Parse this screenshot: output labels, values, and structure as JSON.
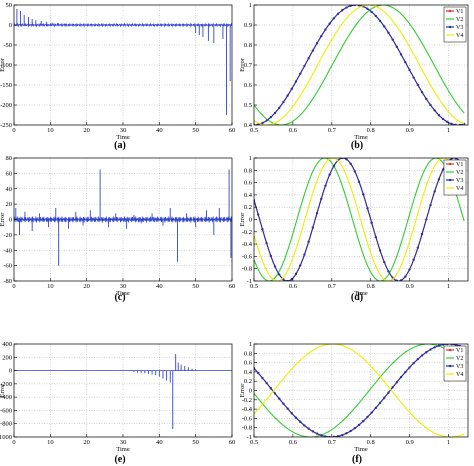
{
  "chart_data": [
    {
      "id": "a",
      "type": "line",
      "panel_label": "(a)",
      "xlabel": "Time",
      "ylabel": "Error",
      "xlim": [
        0,
        60
      ],
      "ylim": [
        -250,
        50
      ],
      "xticks": [
        0,
        10,
        20,
        30,
        40,
        50,
        60
      ],
      "yticks": [
        50,
        0,
        -50,
        -100,
        -150,
        -200,
        -250
      ],
      "grid": true,
      "series": [
        {
          "color": "#3344cc",
          "kind": "spikes",
          "baseline": 0,
          "spikes": [
            [
              0.8,
              40
            ],
            [
              1.8,
              35
            ],
            [
              2.8,
              25
            ],
            [
              4,
              20
            ],
            [
              5,
              15
            ],
            [
              6,
              12
            ],
            [
              7.5,
              10
            ],
            [
              9,
              8
            ],
            [
              10.5,
              6
            ],
            [
              12,
              5
            ],
            [
              14,
              4
            ],
            [
              50,
              -20
            ],
            [
              51,
              -25
            ],
            [
              52,
              -30
            ],
            [
              53.5,
              -40
            ],
            [
              55,
              -45
            ],
            [
              57.5,
              -35
            ],
            [
              58.5,
              -225
            ],
            [
              59.5,
              -140
            ]
          ],
          "noise": 3
        }
      ]
    },
    {
      "id": "b",
      "type": "line",
      "panel_label": "(b)",
      "xlabel": "Time",
      "ylabel": "Error",
      "xlim": [
        0.5,
        1.05
      ],
      "ylim": [
        0.4,
        1.0
      ],
      "xticks": [
        0.5,
        0.6,
        0.7,
        0.8,
        0.9,
        1
      ],
      "yticks": [
        1,
        0.9,
        0.8,
        0.7,
        0.6,
        0.5,
        0.4
      ],
      "grid": true,
      "legend_position": "top-right",
      "series": [
        {
          "name": "V1",
          "color": "#e8302a",
          "marker": "dot",
          "x_start": 0.5,
          "x_end": 1.04,
          "freq": 6.0,
          "phase": 3.14,
          "amp": 0.3,
          "mid": 0.7
        },
        {
          "name": "V2",
          "color": "#33cc33",
          "marker": "none",
          "x_start": 0.5,
          "x_end": 1.04,
          "freq": 6.0,
          "phase": 2.3,
          "amp": 0.3,
          "mid": 0.7
        },
        {
          "name": "V3",
          "color": "#2233aa",
          "marker": "dot",
          "x_start": 0.5,
          "x_end": 1.04,
          "freq": 6.0,
          "phase": 3.14,
          "amp": 0.3,
          "mid": 0.7
        },
        {
          "name": "V4",
          "color": "#eeee00",
          "marker": "none",
          "x_start": 0.5,
          "x_end": 1.04,
          "freq": 6.0,
          "phase": 2.75,
          "amp": 0.3,
          "mid": 0.7
        }
      ]
    },
    {
      "id": "c",
      "type": "line",
      "panel_label": "(c)",
      "xlabel": "Time",
      "ylabel": "Error",
      "xlim": [
        0,
        60
      ],
      "ylim": [
        -80,
        80
      ],
      "xticks": [
        0,
        10,
        20,
        30,
        40,
        50,
        60
      ],
      "yticks": [
        80,
        60,
        40,
        20,
        0,
        -20,
        -40,
        -60,
        -80
      ],
      "grid": true,
      "series": [
        {
          "color": "#3344cc",
          "kind": "spikes",
          "baseline": 0,
          "spikes": [
            [
              0.5,
              15
            ],
            [
              1.5,
              -20
            ],
            [
              3,
              10
            ],
            [
              5,
              -15
            ],
            [
              7,
              8
            ],
            [
              9.5,
              -10
            ],
            [
              11.5,
              15
            ],
            [
              12.3,
              -60
            ],
            [
              15,
              -12
            ],
            [
              17,
              10
            ],
            [
              19,
              -8
            ],
            [
              21,
              12
            ],
            [
              23.7,
              65
            ],
            [
              26,
              -10
            ],
            [
              28,
              8
            ],
            [
              31,
              -12
            ],
            [
              33,
              6
            ],
            [
              35,
              -5
            ],
            [
              38,
              8
            ],
            [
              41,
              -8
            ],
            [
              43,
              15
            ],
            [
              45,
              -55
            ],
            [
              47.5,
              8
            ],
            [
              50,
              -10
            ],
            [
              53,
              12
            ],
            [
              55,
              -20
            ],
            [
              56.5,
              15
            ],
            [
              59.2,
              65
            ],
            [
              59.7,
              -50
            ]
          ],
          "noise": 4
        }
      ]
    },
    {
      "id": "d",
      "type": "line",
      "panel_label": "(d)",
      "xlabel": "Time",
      "ylabel": "Error",
      "xlim": [
        0.5,
        1.05
      ],
      "ylim": [
        -1.0,
        1.0
      ],
      "xticks": [
        0.5,
        0.6,
        0.7,
        0.8,
        0.9,
        1
      ],
      "yticks": [
        1,
        0.8,
        0.6,
        0.4,
        0.2,
        0,
        -0.2,
        -0.4,
        -0.6,
        -0.8,
        -1
      ],
      "grid": true,
      "legend_position": "top-right",
      "series": [
        {
          "name": "V1",
          "color": "#e8302a",
          "marker": "dot",
          "x_start": 0.5,
          "x_end": 1.04,
          "freq": 11.0,
          "phase": -5.03,
          "amp": 1.0,
          "mid": 0
        },
        {
          "name": "V2",
          "color": "#33cc33",
          "marker": "none",
          "x_start": 0.5,
          "x_end": 1.04,
          "freq": 11.0,
          "phase": -4.0,
          "amp": 1.0,
          "mid": 0
        },
        {
          "name": "V3",
          "color": "#2233aa",
          "marker": "dot",
          "x_start": 0.5,
          "x_end": 1.04,
          "freq": 11.0,
          "phase": -5.03,
          "amp": 1.0,
          "mid": 0
        },
        {
          "name": "V4",
          "color": "#eeee00",
          "marker": "none",
          "x_start": 0.5,
          "x_end": 1.04,
          "freq": 11.0,
          "phase": -4.45,
          "amp": 1.0,
          "mid": 0
        }
      ]
    },
    {
      "id": "e",
      "type": "line",
      "panel_label": "(e)",
      "xlabel": "Time",
      "ylabel": "Error",
      "xlim": [
        0,
        60
      ],
      "ylim": [
        -1000,
        400
      ],
      "xticks": [
        0,
        10,
        20,
        30,
        40,
        50,
        60
      ],
      "yticks": [
        400,
        200,
        0,
        -200,
        -400,
        -600,
        -800,
        -1000
      ],
      "grid": true,
      "series": [
        {
          "color": "#3344cc",
          "kind": "spikes",
          "baseline": 0,
          "spikes": [
            [
              33,
              -20
            ],
            [
              34,
              -30
            ],
            [
              35,
              -35
            ],
            [
              36,
              -40
            ],
            [
              37,
              -50
            ],
            [
              38,
              -60
            ],
            [
              39,
              -70
            ],
            [
              40,
              -90
            ],
            [
              41,
              -120
            ],
            [
              42,
              -150
            ],
            [
              43,
              -180
            ],
            [
              43.7,
              -880
            ],
            [
              44.5,
              250
            ],
            [
              45.2,
              120
            ],
            [
              46,
              90
            ],
            [
              47,
              70
            ],
            [
              48,
              50
            ],
            [
              49,
              30
            ],
            [
              50,
              20
            ]
          ],
          "noise": 0
        }
      ]
    },
    {
      "id": "f",
      "type": "line",
      "panel_label": "(f)",
      "xlabel": "Time",
      "ylabel": "Error",
      "xlim": [
        0.5,
        1.05
      ],
      "ylim": [
        -1.0,
        1.0
      ],
      "xticks": [
        0.5,
        0.6,
        0.7,
        0.8,
        0.9,
        1
      ],
      "yticks": [
        1,
        0.8,
        0.6,
        0.4,
        0.2,
        0,
        -0.2,
        -0.4,
        -0.6,
        -0.8,
        -1
      ],
      "grid": true,
      "legend_position": "top-right",
      "series": [
        {
          "name": "V1",
          "color": "#e8302a",
          "marker": "dot",
          "x_start": 0.5,
          "x_end": 1.04,
          "freq": 5.2,
          "phase": -5.21,
          "amp": 1.0,
          "mid": 0
        },
        {
          "name": "V2",
          "color": "#33cc33",
          "marker": "none",
          "x_start": 0.5,
          "x_end": 1.04,
          "freq": 5.2,
          "phase": -4.65,
          "amp": 1.0,
          "mid": 0
        },
        {
          "name": "V3",
          "color": "#2233aa",
          "marker": "dot",
          "x_start": 0.5,
          "x_end": 1.04,
          "freq": 5.2,
          "phase": -5.21,
          "amp": 1.0,
          "mid": 0
        },
        {
          "name": "V4",
          "color": "#eeee00",
          "marker": "none",
          "x_start": 0.5,
          "x_end": 1.04,
          "freq": 5.2,
          "phase": -2.1,
          "amp": 1.0,
          "mid": 0
        }
      ]
    }
  ]
}
